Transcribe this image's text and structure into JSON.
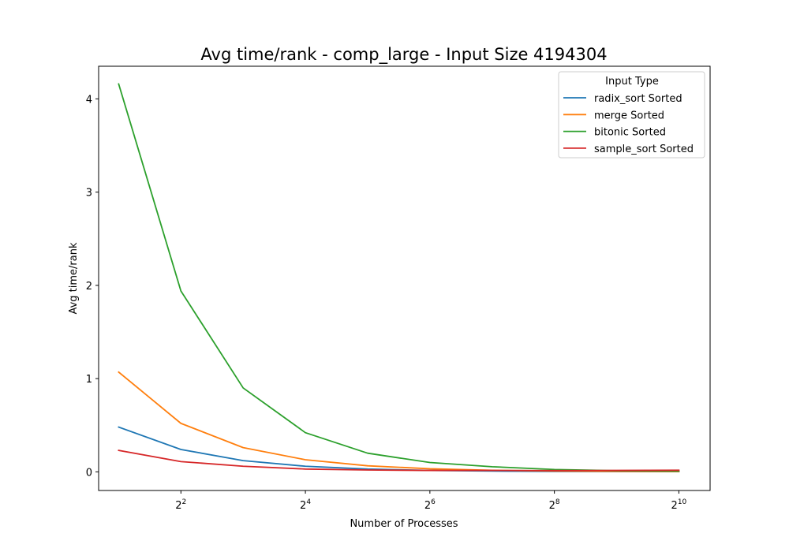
{
  "chart_data": {
    "type": "line",
    "title": "Avg time/rank - comp_large - Input Size 4194304",
    "xlabel": "Number of Processes",
    "ylabel": "Avg time/rank",
    "x": [
      2,
      4,
      8,
      16,
      32,
      64,
      128,
      256,
      512,
      1024
    ],
    "xscale": "log2",
    "xlim": [
      1.6,
      1450
    ],
    "ylim": [
      -0.2,
      4.35
    ],
    "xticks": [
      {
        "value": 4,
        "base": "2",
        "exp": "2"
      },
      {
        "value": 16,
        "base": "2",
        "exp": "4"
      },
      {
        "value": 64,
        "base": "2",
        "exp": "6"
      },
      {
        "value": 256,
        "base": "2",
        "exp": "8"
      },
      {
        "value": 1024,
        "base": "2",
        "exp": "10"
      }
    ],
    "yticks": [
      {
        "value": 0,
        "label": "0"
      },
      {
        "value": 1,
        "label": "1"
      },
      {
        "value": 2,
        "label": "2"
      },
      {
        "value": 3,
        "label": "3"
      },
      {
        "value": 4,
        "label": "4"
      }
    ],
    "grid": false,
    "legend": {
      "title": "Input Type",
      "placement": "top-right"
    },
    "series": [
      {
        "name": "radix_sort Sorted",
        "color": "#1f77b4",
        "values": [
          0.48,
          0.24,
          0.12,
          0.06,
          0.03,
          0.015,
          0.008,
          0.004,
          0.003,
          0.002
        ]
      },
      {
        "name": "merge Sorted",
        "color": "#ff7f0e",
        "values": [
          1.07,
          0.52,
          0.26,
          0.13,
          0.065,
          0.033,
          0.017,
          0.009,
          0.005,
          0.003
        ]
      },
      {
        "name": "bitonic Sorted",
        "color": "#2ca02c",
        "values": [
          4.16,
          1.94,
          0.9,
          0.42,
          0.2,
          0.1,
          0.055,
          0.025,
          0.012,
          0.008
        ]
      },
      {
        "name": "sample_sort Sorted",
        "color": "#d62728",
        "values": [
          0.23,
          0.11,
          0.06,
          0.03,
          0.02,
          0.015,
          0.015,
          0.013,
          0.015,
          0.017
        ]
      }
    ]
  }
}
